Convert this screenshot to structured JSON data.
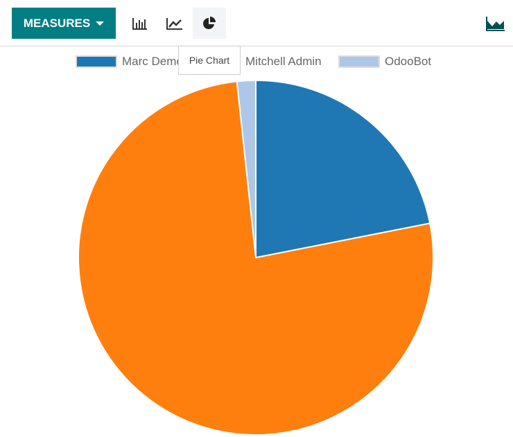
{
  "toolbar": {
    "measures_label": "MEASURES",
    "tooltip": "Pie Chart",
    "active_chart": "pie"
  },
  "chart_data": {
    "type": "pie",
    "labels": [
      "Marc Demo",
      "Mitchell Admin",
      "OdooBot"
    ],
    "values": [
      21.9,
      76.4,
      1.7
    ],
    "colors": [
      "#1f77b4",
      "#ff7f0e",
      "#aec7e8"
    ],
    "legend": "top"
  }
}
